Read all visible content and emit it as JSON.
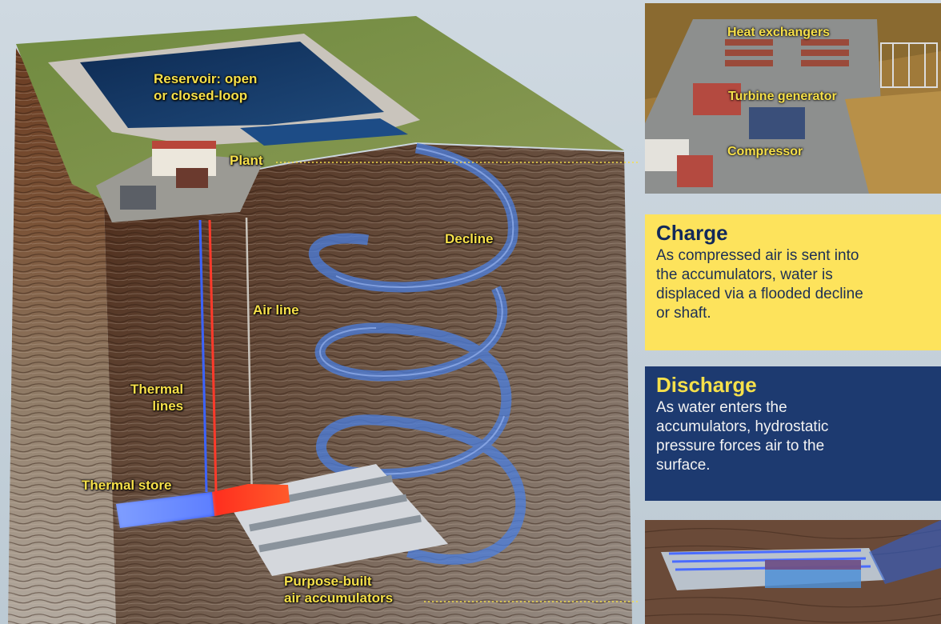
{
  "diagram": {
    "labels": {
      "reservoir": [
        "Reservoir: open",
        "or closed-loop"
      ],
      "plant": "Plant",
      "decline": "Decline",
      "air_line": "Air line",
      "thermal_lines": [
        "Thermal",
        "lines"
      ],
      "thermal_store": "Thermal store",
      "accumulators": [
        "Purpose-built",
        "air accumulators"
      ]
    }
  },
  "inset_plant": {
    "labels": [
      "Heat exchangers",
      "Turbine generator",
      "Compressor"
    ]
  },
  "charge": {
    "title": "Charge",
    "text_lines": [
      "As compressed air is sent into",
      "the accumulators, water is",
      "displaced via a flooded decline",
      "or shaft."
    ]
  },
  "discharge": {
    "title": "Discharge",
    "text_lines": [
      "As water enters the",
      "accumulators, hydrostatic",
      "pressure forces air to the",
      "surface."
    ]
  },
  "colors": {
    "label_yellow": "#f6e04a",
    "charge_bg": "#fde35c",
    "discharge_bg": "#1d3a70",
    "decline_blue": "#4b7fe0",
    "thermal_red": "#ff3a2a",
    "thermal_blue": "#3b63ff"
  }
}
